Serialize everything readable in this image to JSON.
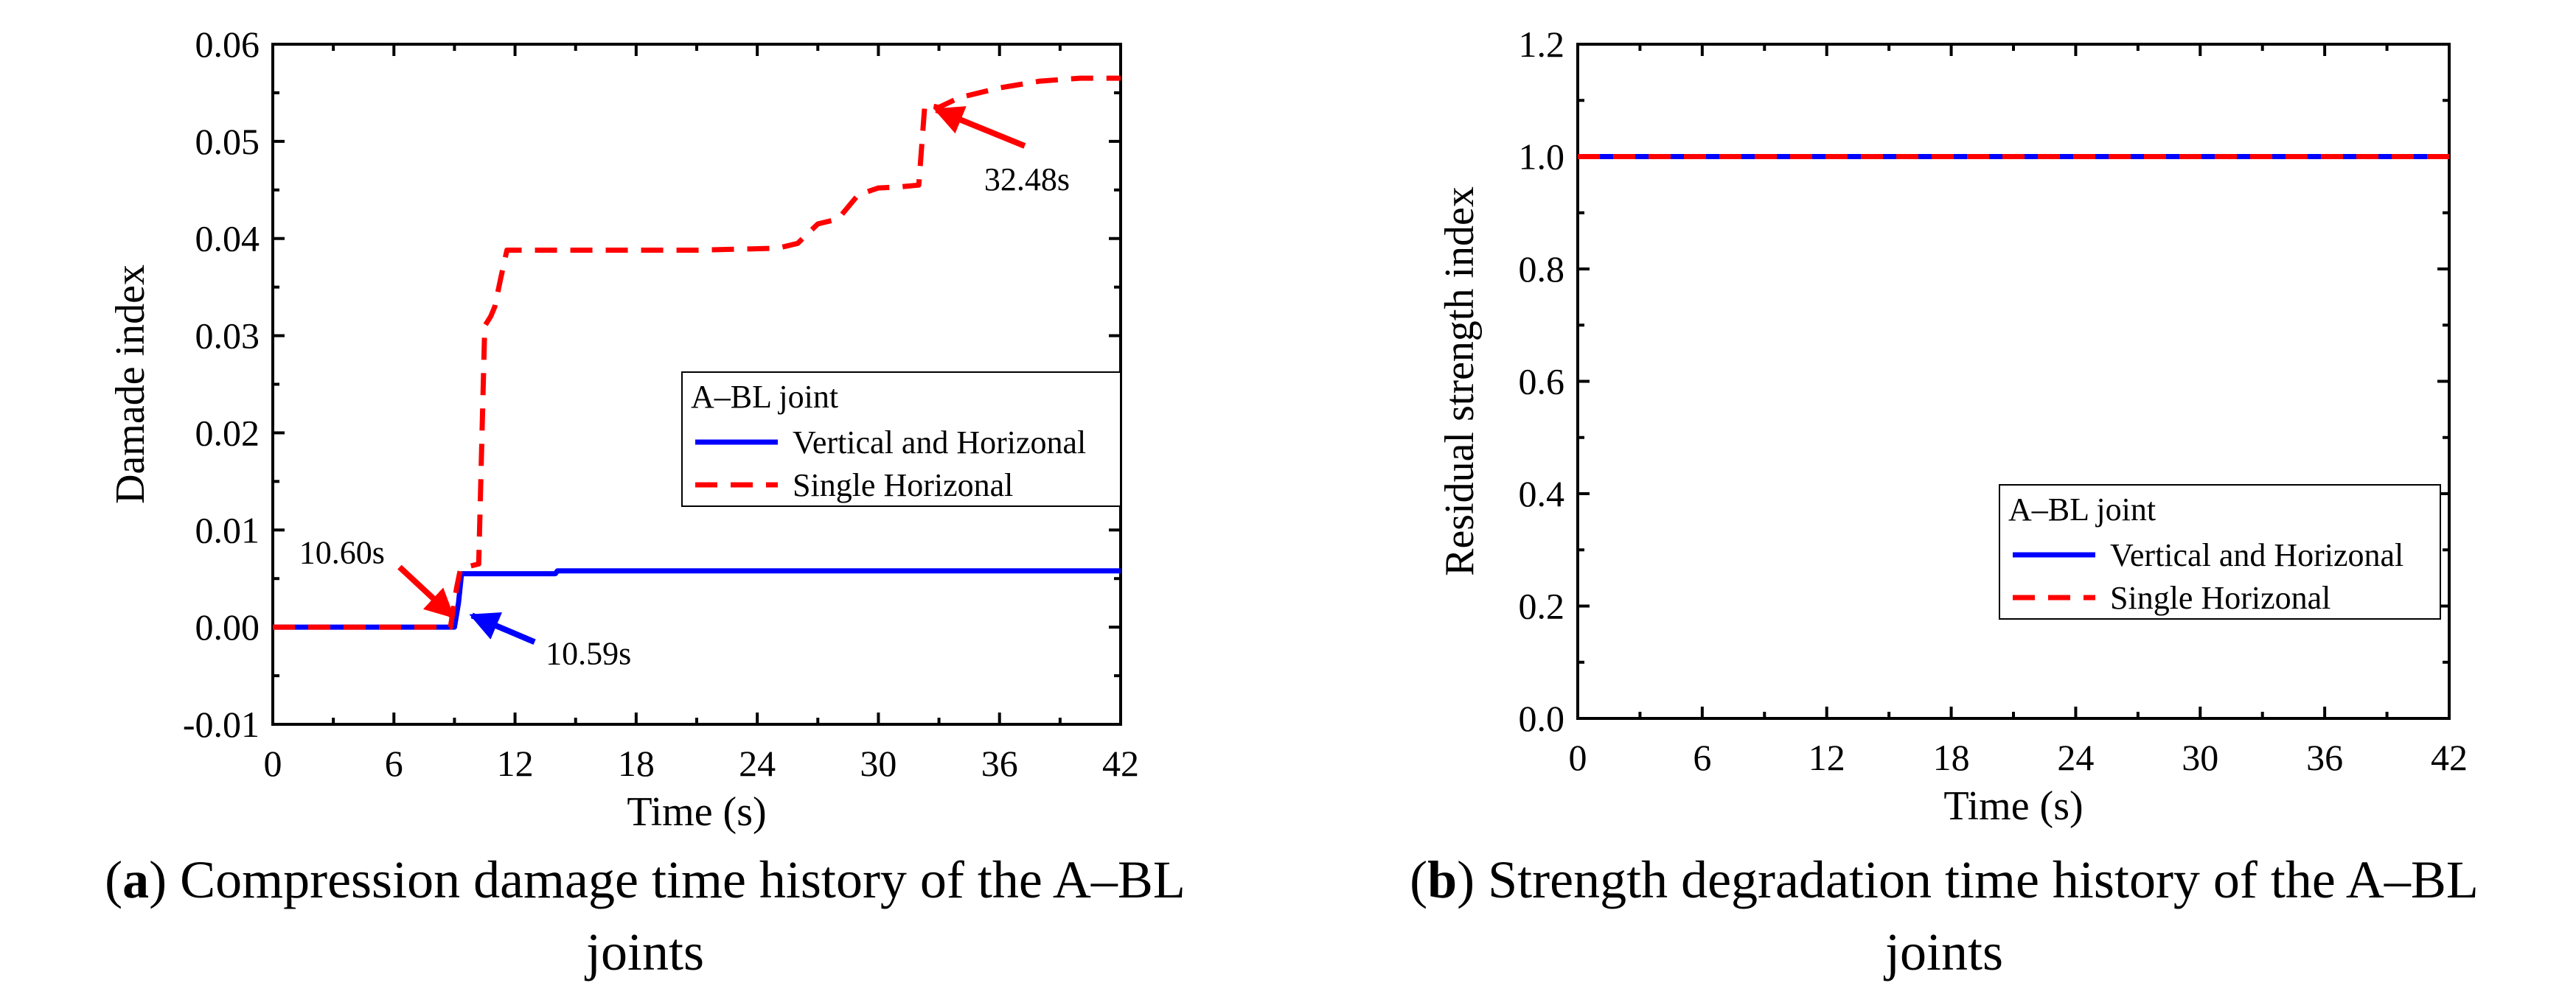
{
  "chart_data": [
    {
      "type": "line",
      "panel": "a",
      "xlabel": "Time (s)",
      "ylabel": "Damade index",
      "xlim": [
        0,
        42
      ],
      "ylim": [
        -0.01,
        0.06
      ],
      "xticks": [
        0,
        6,
        12,
        18,
        24,
        30,
        36,
        42
      ],
      "xtick_labels": [
        "0",
        "6",
        "12",
        "18",
        "24",
        "30",
        "36",
        "42"
      ],
      "yticks": [
        -0.01,
        0.0,
        0.01,
        0.02,
        0.03,
        0.04,
        0.05,
        0.06
      ],
      "ytick_labels": [
        "-0.01",
        "0.00",
        "0.01",
        "0.02",
        "0.03",
        "0.04",
        "0.05",
        "0.06"
      ],
      "legend": {
        "title": "A–BL joint",
        "position": "center-right",
        "entries": [
          "Vertical and Horizonal",
          "Single Horizonal"
        ]
      },
      "series": [
        {
          "name": "Vertical and Horizonal",
          "color": "#0000ff",
          "dash": "solid",
          "x": [
            0,
            9.0,
            9.2,
            9.35,
            9.5,
            14.0,
            14.1,
            42
          ],
          "y": [
            0.0,
            0.0,
            0.0025,
            0.0055,
            0.0055,
            0.0055,
            0.0058,
            0.0058
          ]
        },
        {
          "name": "Single Horizonal",
          "color": "#ff0000",
          "dash": "dashed",
          "x": [
            0,
            8.8,
            9.1,
            9.3,
            9.6,
            10.2,
            10.5,
            10.8,
            11.0,
            11.3,
            11.6,
            18.0,
            21.0,
            25.0,
            26.0,
            27.0,
            28.0,
            29.0,
            30.0,
            31.0,
            32.0,
            32.3,
            32.5,
            33.0,
            34.0,
            36.0,
            38.0,
            40.0,
            42.0
          ],
          "y": [
            0.0,
            0.0,
            0.004,
            0.006,
            0.0062,
            0.0065,
            0.031,
            0.032,
            0.033,
            0.036,
            0.0388,
            0.0388,
            0.0388,
            0.039,
            0.0395,
            0.0415,
            0.042,
            0.0445,
            0.0452,
            0.0453,
            0.0455,
            0.0538,
            0.0537,
            0.0535,
            0.0545,
            0.0555,
            0.0562,
            0.0565,
            0.0565
          ]
        }
      ],
      "annotations": [
        {
          "text": "10.60s",
          "color": "#ff0000",
          "x": 9.2,
          "y": 0.0005
        },
        {
          "text": "10.59s",
          "color": "#0000ff",
          "x": 9.5,
          "y": 0.0015
        },
        {
          "text": "32.48s",
          "color": "#ff0000",
          "x": 32.5,
          "y": 0.0537
        }
      ]
    },
    {
      "type": "line",
      "panel": "b",
      "xlabel": "Time (s)",
      "ylabel": "Residual strength index",
      "xlim": [
        0,
        42
      ],
      "ylim": [
        0.0,
        1.2
      ],
      "xticks": [
        0,
        6,
        12,
        18,
        24,
        30,
        36,
        42
      ],
      "xtick_labels": [
        "0",
        "6",
        "12",
        "18",
        "24",
        "30",
        "36",
        "42"
      ],
      "yticks": [
        0.0,
        0.2,
        0.4,
        0.6,
        0.8,
        1.0,
        1.2
      ],
      "ytick_labels": [
        "0.0",
        "0.2",
        "0.4",
        "0.6",
        "0.8",
        "1.0",
        "1.2"
      ],
      "legend": {
        "title": "A–BL joint",
        "position": "bottom-right",
        "entries": [
          "Vertical and Horizonal",
          "Single Horizonal"
        ]
      },
      "series": [
        {
          "name": "Vertical and Horizonal",
          "color": "#0000ff",
          "dash": "solid",
          "x": [
            0,
            42
          ],
          "y": [
            1.0,
            1.0
          ]
        },
        {
          "name": "Single Horizonal",
          "color": "#ff0000",
          "dash": "dashed",
          "x": [
            0,
            42
          ],
          "y": [
            1.0,
            1.0
          ]
        }
      ]
    }
  ],
  "captions": {
    "a": {
      "label": "a",
      "prefix": "(",
      "suffix": ")",
      "line1": " Compression damage time history of the A–BL",
      "line2": "joints"
    },
    "b": {
      "label": "b",
      "prefix": "(",
      "suffix": ")",
      "line1": " Strength degradation time history of the A–BL",
      "line2": "joints"
    }
  }
}
